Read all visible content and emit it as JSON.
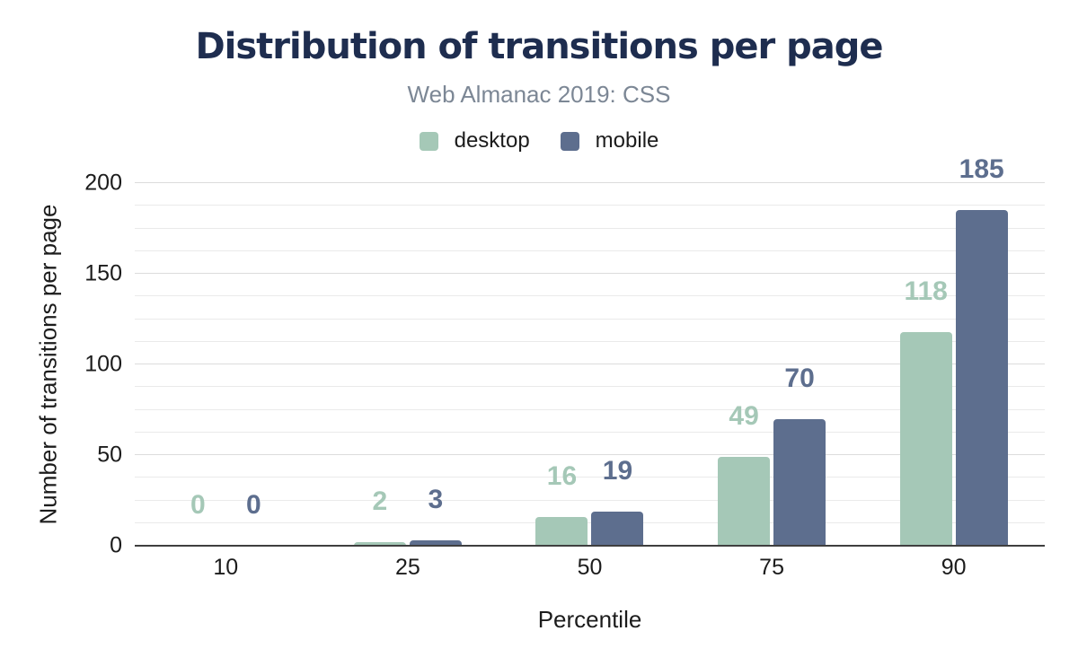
{
  "chart_data": {
    "type": "bar",
    "title": "Distribution of transitions per page",
    "subtitle": "Web Almanac 2019: CSS",
    "xlabel": "Percentile",
    "ylabel": "Number of transitions per page",
    "categories": [
      "10",
      "25",
      "50",
      "75",
      "90"
    ],
    "series": [
      {
        "name": "desktop",
        "color": "#a5c8b7",
        "values": [
          0,
          2,
          16,
          49,
          118
        ]
      },
      {
        "name": "mobile",
        "color": "#5d6e8e",
        "values": [
          0,
          3,
          19,
          70,
          185
        ]
      }
    ],
    "ylim": [
      0,
      200
    ],
    "yticks": [
      0,
      50,
      100,
      150,
      200
    ],
    "minor_gridline_step": 12.5,
    "grid": true,
    "legend_position": "top",
    "value_labels": true
  },
  "colors": {
    "title": "#1e2d4f",
    "subtitle": "#7c8795",
    "axis_text": "#1c1c1c",
    "gridline_minor": "#eaeaea",
    "gridline_major": "#dcdcdc",
    "axis_line": "#3f3f3f",
    "background": "#ffffff"
  }
}
